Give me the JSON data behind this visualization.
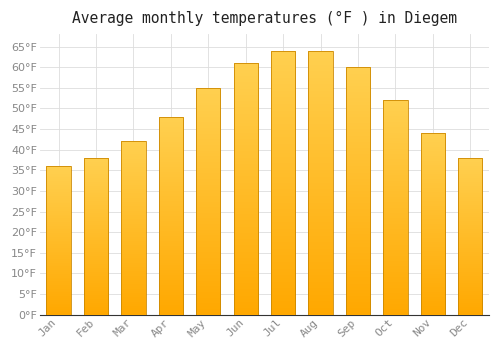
{
  "title": "Average monthly temperatures (°F ) in Diegem",
  "months": [
    "Jan",
    "Feb",
    "Mar",
    "Apr",
    "May",
    "Jun",
    "Jul",
    "Aug",
    "Sep",
    "Oct",
    "Nov",
    "Dec"
  ],
  "values": [
    36,
    38,
    42,
    48,
    55,
    61,
    64,
    64,
    60,
    52,
    44,
    38
  ],
  "bar_color_top": "#FFBE00",
  "bar_color_bottom": "#FFA000",
  "bar_edge_color": "#CC8800",
  "background_color": "#FFFFFF",
  "plot_bg_color": "#FFFFFF",
  "ylim": [
    0,
    68
  ],
  "yticks": [
    0,
    5,
    10,
    15,
    20,
    25,
    30,
    35,
    40,
    45,
    50,
    55,
    60,
    65
  ],
  "title_fontsize": 10.5,
  "tick_fontsize": 8,
  "grid_color": "#DDDDDD",
  "tick_color": "#888888"
}
